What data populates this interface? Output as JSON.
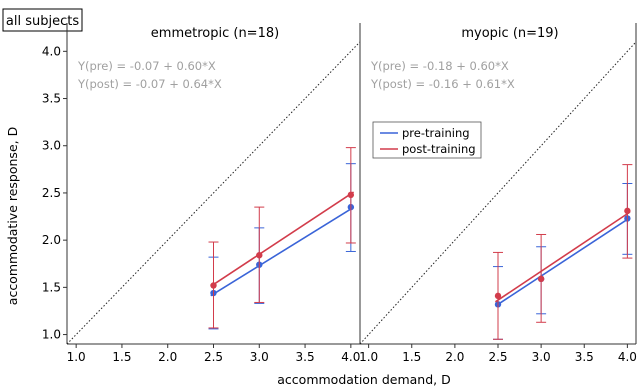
{
  "figure": {
    "tag": "all subjects",
    "xlabel": "accommodation demand, D",
    "ylabel": "accommodative response, D"
  },
  "legend": {
    "placement": "center",
    "entries": [
      "pre-training",
      "post-training"
    ]
  },
  "colors": {
    "pre": "#3a64d8",
    "post": "#d23c4b",
    "equation_text": "#a0a0a0",
    "axis": "#333333"
  },
  "chart_data": [
    {
      "type": "line",
      "title": "emmetropic (n=18)",
      "xlim": [
        0.9,
        4.1
      ],
      "ylim": [
        0.9,
        4.3
      ],
      "xticks": [
        "1.0",
        "1.5",
        "2.0",
        "2.5",
        "3.0",
        "3.5",
        "4.0"
      ],
      "yticks": [
        "1.0",
        "1.5",
        "2.0",
        "2.5",
        "3.0",
        "3.5",
        "4.0"
      ],
      "equations": [
        "Y(pre) = -0.07 + 0.60*X",
        "Y(post) = -0.07 + 0.64*X"
      ],
      "identity_line": true,
      "series": [
        {
          "name": "pre-training",
          "x": [
            2.5,
            3.0,
            4.0
          ],
          "y": [
            1.44,
            1.74,
            2.35
          ],
          "err_low": [
            1.06,
            1.33,
            1.88
          ],
          "err_high": [
            1.82,
            2.13,
            2.81
          ],
          "fit": {
            "intercept": -0.07,
            "slope": 0.6
          }
        },
        {
          "name": "post-training",
          "x": [
            2.5,
            3.0,
            4.0
          ],
          "y": [
            1.52,
            1.84,
            2.48
          ],
          "err_low": [
            1.07,
            1.34,
            1.97
          ],
          "err_high": [
            1.98,
            2.35,
            2.98
          ],
          "fit": {
            "intercept": -0.07,
            "slope": 0.64
          }
        }
      ]
    },
    {
      "type": "line",
      "title": "myopic (n=19)",
      "xlim": [
        0.9,
        4.1
      ],
      "ylim": [
        0.9,
        4.3
      ],
      "xticks": [
        "1.0",
        "1.5",
        "2.0",
        "2.5",
        "3.0",
        "3.5",
        "4.0"
      ],
      "yticks": [],
      "equations": [
        "Y(pre) = -0.18 + 0.60*X",
        "Y(post) = -0.16 + 0.61*X"
      ],
      "identity_line": true,
      "series": [
        {
          "name": "pre-training",
          "x": [
            2.5,
            3.0,
            4.0
          ],
          "y": [
            1.32,
            1.59,
            2.23
          ],
          "err_low": [
            0.95,
            1.22,
            1.85
          ],
          "err_high": [
            1.72,
            1.93,
            2.6
          ],
          "fit": {
            "intercept": -0.18,
            "slope": 0.6
          }
        },
        {
          "name": "post-training",
          "x": [
            2.5,
            3.0,
            4.0
          ],
          "y": [
            1.41,
            1.59,
            2.31
          ],
          "err_low": [
            0.95,
            1.13,
            1.81
          ],
          "err_high": [
            1.87,
            2.06,
            2.8
          ],
          "fit": {
            "intercept": -0.16,
            "slope": 0.61
          }
        }
      ]
    }
  ]
}
